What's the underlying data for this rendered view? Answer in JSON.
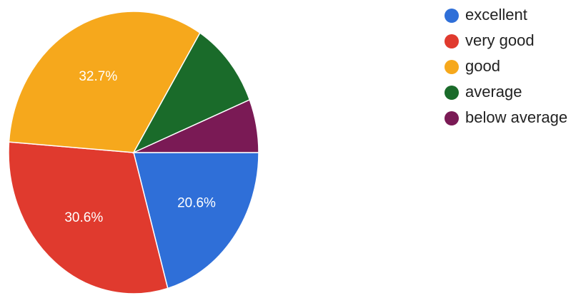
{
  "chart_data": {
    "type": "pie",
    "categories": [
      "excellent",
      "very good",
      "good",
      "average",
      "below average"
    ],
    "values": [
      20.6,
      30.6,
      32.7,
      10.0,
      6.1
    ],
    "value_labels": [
      "20.6%",
      "30.6%",
      "32.7%",
      "",
      ""
    ],
    "colors": [
      "#2f6fd8",
      "#e03a2e",
      "#f6a81c",
      "#1a6b2a",
      "#7a1a55"
    ],
    "legend_position": "right",
    "start_angle_deg": 0,
    "direction": "clockwise"
  }
}
